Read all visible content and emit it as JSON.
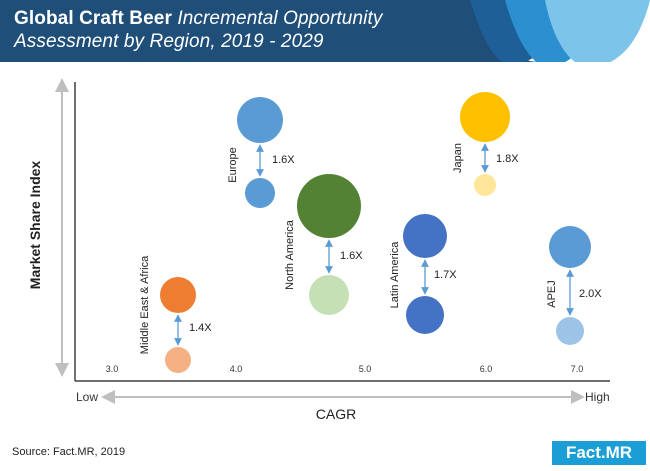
{
  "header": {
    "title_bold": "Global Craft Beer",
    "title_italic_1": "Incremental Opportunity",
    "title_italic_2": "Assessment by Region, 2019 - 2029",
    "colors": {
      "navy": "#1f4e79",
      "mid": "#2b7ab8",
      "light": "#7cc4ea"
    }
  },
  "chart_data": {
    "type": "bubble",
    "xlabel": "CAGR",
    "ylabel": "Market Share Index",
    "x_low_label": "Low",
    "x_high_label": "High",
    "x_ticks": [
      "3.0",
      "4.0",
      "5.0",
      "6.0",
      "7.0"
    ],
    "xlim": [
      3.0,
      7.0
    ],
    "series": [
      {
        "name": "Europe",
        "cagr": 4.2,
        "multiplier": "1.6X",
        "color_top": "#5b9bd5",
        "color_bottom": "#5b9bd5"
      },
      {
        "name": "North America",
        "cagr": 4.7,
        "multiplier": "1.6X",
        "color_top": "#548235",
        "color_bottom": "#c5e0b4"
      },
      {
        "name": "Latin America",
        "cagr": 5.5,
        "multiplier": "1.7X",
        "color_top": "#4472c4",
        "color_bottom": "#4472c4"
      },
      {
        "name": "Japan",
        "cagr": 6.0,
        "multiplier": "1.8X",
        "color_top": "#ffc000",
        "color_bottom": "#ffe699"
      },
      {
        "name": "APEJ",
        "cagr": 6.7,
        "multiplier": "2.0X",
        "color_top": "#5b9bd5",
        "color_bottom": "#9dc3e6"
      },
      {
        "name": "Middle East & Africa",
        "cagr": 3.5,
        "multiplier": "1.4X",
        "color_top": "#ed7d31",
        "color_bottom": "#f4b183"
      }
    ]
  },
  "footer": {
    "source": "Source: Fact.MR, 2019",
    "logo": "Fact.MR"
  }
}
